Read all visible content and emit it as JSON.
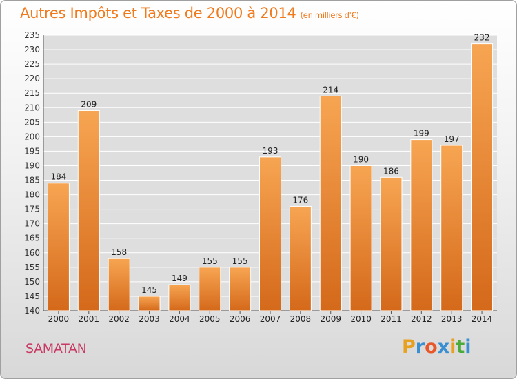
{
  "chart_data": {
    "type": "bar",
    "title": "Autres Impôts et Taxes de 2000 à 2014",
    "subtitle": "(en milliers d'€)",
    "categories": [
      "2000",
      "2001",
      "2002",
      "2003",
      "2004",
      "2005",
      "2006",
      "2007",
      "2008",
      "2009",
      "2010",
      "2011",
      "2012",
      "2013",
      "2014"
    ],
    "values": [
      184,
      209,
      158,
      145,
      149,
      155,
      155,
      193,
      176,
      214,
      190,
      186,
      199,
      197,
      232
    ],
    "ylim": [
      140,
      235
    ],
    "yticks": [
      140,
      145,
      150,
      155,
      160,
      165,
      170,
      175,
      180,
      185,
      190,
      195,
      200,
      205,
      210,
      215,
      220,
      225,
      230,
      235
    ],
    "xlabel": "",
    "ylabel": "",
    "grid": true,
    "bar_color_top": "#f7a552",
    "bar_color_bottom": "#d4691a"
  },
  "footer": {
    "city": "SAMATAN",
    "logo_letters": [
      "P",
      "r",
      "o",
      "x",
      "i",
      "t",
      "i"
    ],
    "logo_colors": [
      "#e8a020",
      "#3a8fd0",
      "#e8562a",
      "#3a8fd0",
      "#e8a020",
      "#4aaa3a",
      "#3a8fd0"
    ]
  },
  "colors": {
    "title": "#f07a1c",
    "city": "#c83a64"
  }
}
